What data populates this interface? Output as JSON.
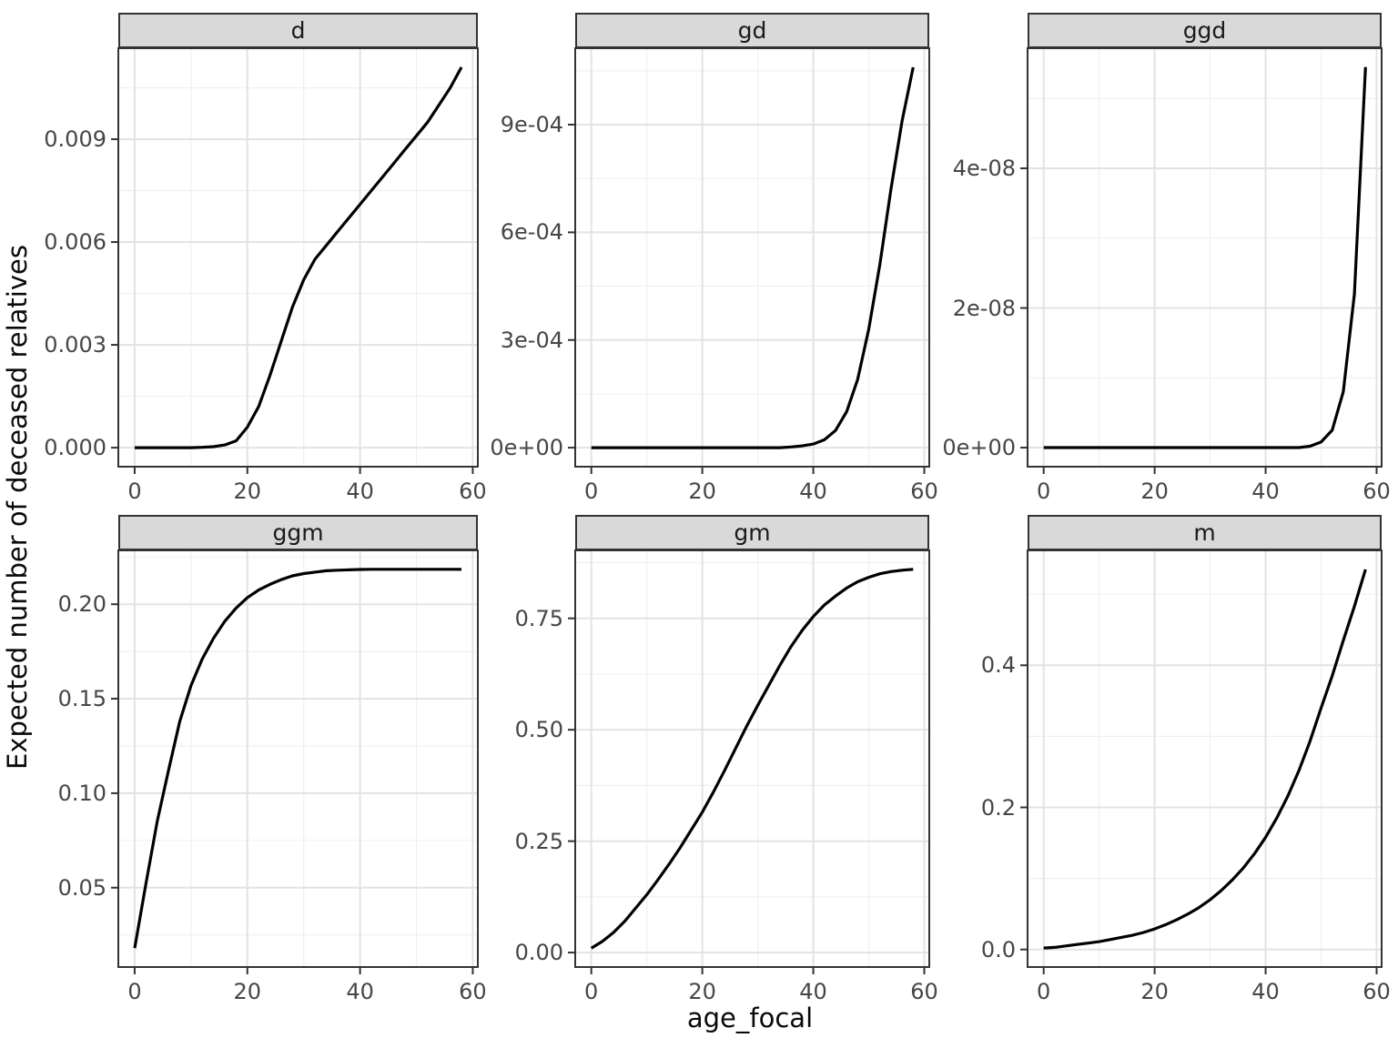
{
  "chart_data": {
    "type": "line",
    "title": "",
    "xlabel": "age_focal",
    "ylabel": "Expected number of deceased relatives",
    "legend": "none",
    "grid": true,
    "facet_layout": "2 rows x 3 cols, free y scales",
    "x": [
      0,
      2,
      4,
      6,
      8,
      10,
      12,
      14,
      16,
      18,
      20,
      22,
      24,
      26,
      28,
      30,
      32,
      34,
      36,
      38,
      40,
      42,
      44,
      46,
      48,
      50,
      52,
      54,
      56,
      58
    ],
    "xlim": [
      -2.9,
      60.9
    ],
    "x_ticks": {
      "values": [
        0,
        20,
        40,
        60
      ],
      "labels": [
        "0",
        "20",
        "40",
        "60"
      ]
    },
    "x_minor": [
      10,
      30,
      50
    ],
    "panels": [
      {
        "label": "d",
        "values": [
          0,
          0,
          0,
          0,
          0,
          0,
          1e-05,
          3e-05,
          8e-05,
          0.0002,
          0.0006,
          0.0012,
          0.0021,
          0.0031,
          0.0041,
          0.0049,
          0.0055,
          0.0059,
          0.0063,
          0.0067,
          0.0071,
          0.0075,
          0.0079,
          0.0083,
          0.0087,
          0.0091,
          0.0095,
          0.01,
          0.0105,
          0.0111
        ],
        "ylim": [
          -0.000555,
          0.011655
        ],
        "y_ticks": {
          "values": [
            0,
            0.003,
            0.006,
            0.009
          ],
          "labels": [
            "0.000",
            "0.003",
            "0.006",
            "0.009"
          ]
        },
        "y_minor": [
          0.0015,
          0.0045,
          0.0075,
          0.0105
        ]
      },
      {
        "label": "gd",
        "values": [
          0,
          0,
          0,
          0,
          0,
          0,
          0,
          0,
          0,
          0,
          0,
          0,
          0,
          0,
          0,
          0,
          0,
          0,
          2e-06,
          5e-06,
          1e-05,
          2.2e-05,
          4.8e-05,
          0.0001,
          0.00019,
          0.00033,
          0.00051,
          0.00072,
          0.00091,
          0.00106
        ],
        "ylim": [
          -5.3e-05,
          0.001113
        ],
        "y_ticks": {
          "values": [
            0,
            0.0003,
            0.0006,
            0.0009
          ],
          "labels": [
            "0e+00",
            "3e-04",
            "6e-04",
            "9e-04"
          ]
        },
        "y_minor": [
          0.00015,
          0.00045,
          0.00075,
          0.00105
        ]
      },
      {
        "label": "ggd",
        "values": [
          0,
          0,
          0,
          0,
          0,
          0,
          0,
          0,
          0,
          0,
          0,
          0,
          0,
          0,
          0,
          0,
          0,
          0,
          0,
          0,
          0,
          0,
          0,
          0,
          2e-10,
          8e-10,
          2.5e-09,
          8e-09,
          2.2e-08,
          5.45e-08
        ],
        "ylim": [
          -2.73e-09,
          5.72e-08
        ],
        "y_ticks": {
          "values": [
            0,
            2e-08,
            4e-08
          ],
          "labels": [
            "0e+00",
            "2e-08",
            "4e-08"
          ]
        },
        "y_minor": [
          1e-08,
          3e-08,
          5e-08
        ]
      },
      {
        "label": "ggm",
        "values": [
          0.018,
          0.052,
          0.085,
          0.112,
          0.138,
          0.157,
          0.171,
          0.182,
          0.191,
          0.198,
          0.2035,
          0.2075,
          0.2105,
          0.213,
          0.215,
          0.2162,
          0.217,
          0.2177,
          0.218,
          0.2182,
          0.2184,
          0.2185,
          0.2185,
          0.2185,
          0.2185,
          0.2185,
          0.2185,
          0.2185,
          0.2185,
          0.2185
        ],
        "ylim": [
          0.008,
          0.2285
        ],
        "y_ticks": {
          "values": [
            0.05,
            0.1,
            0.15,
            0.2
          ],
          "labels": [
            "0.05",
            "0.10",
            "0.15",
            "0.20"
          ]
        },
        "y_minor": [
          0.025,
          0.075,
          0.125,
          0.175,
          0.225
        ]
      },
      {
        "label": "gm",
        "values": [
          0.01,
          0.025,
          0.045,
          0.07,
          0.1,
          0.13,
          0.163,
          0.198,
          0.235,
          0.275,
          0.315,
          0.36,
          0.408,
          0.458,
          0.508,
          0.555,
          0.6,
          0.645,
          0.687,
          0.723,
          0.754,
          0.78,
          0.8,
          0.818,
          0.832,
          0.842,
          0.85,
          0.855,
          0.858,
          0.86
        ],
        "ylim": [
          -0.0325,
          0.9025
        ],
        "y_ticks": {
          "values": [
            0,
            0.25,
            0.5,
            0.75
          ],
          "labels": [
            "0.00",
            "0.25",
            "0.50",
            "0.75"
          ]
        },
        "y_minor": [
          0.125,
          0.375,
          0.625,
          0.875
        ]
      },
      {
        "label": "m",
        "values": [
          0.002,
          0.003,
          0.005,
          0.007,
          0.009,
          0.011,
          0.014,
          0.017,
          0.02,
          0.024,
          0.029,
          0.035,
          0.042,
          0.05,
          0.059,
          0.07,
          0.083,
          0.098,
          0.115,
          0.135,
          0.158,
          0.185,
          0.216,
          0.252,
          0.293,
          0.34,
          0.385,
          0.435,
          0.483,
          0.535
        ],
        "ylim": [
          -0.0247,
          0.5617
        ],
        "y_ticks": {
          "values": [
            0,
            0.2,
            0.4
          ],
          "labels": [
            "0.0",
            "0.2",
            "0.4"
          ]
        },
        "y_minor": [
          0.1,
          0.3,
          0.5
        ]
      }
    ],
    "theme": {
      "background": "#ffffff",
      "panel_bg": "#ffffff",
      "panel_border": "#333333",
      "strip_bg": "#d9d9d9",
      "strip_text": "#1a1a1a",
      "grid_major": "#e3e3e3",
      "grid_minor": "#f0f0f0",
      "tick_color": "#333333",
      "tick_label_color": "#464646",
      "line_color": "#000000"
    }
  }
}
